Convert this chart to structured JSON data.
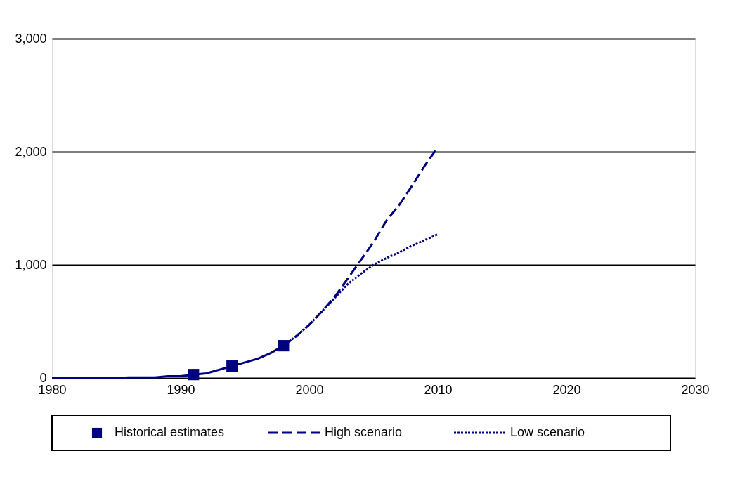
{
  "chart_data": {
    "type": "line",
    "xlim": [
      1980,
      2030
    ],
    "xticks": [
      1980,
      1990,
      2000,
      2010,
      2020,
      2030
    ],
    "ylim": [
      0,
      3000
    ],
    "yticks": [
      {
        "value": 0,
        "label": "0"
      },
      {
        "value": 1000,
        "label": "1,000"
      },
      {
        "value": 2000,
        "label": "2,000"
      },
      {
        "value": 3000,
        "label": "3,000"
      }
    ],
    "grid": "y",
    "legend": "bottom",
    "series": [
      {
        "color": "#000080",
        "line_style": "solid",
        "x": [
          1980,
          1985,
          1986,
          1988,
          1989,
          1990,
          1991,
          1992,
          1994,
          1996,
          1997,
          1998
        ],
        "values": [
          0,
          0,
          5,
          5,
          15,
          15,
          30,
          40,
          105,
          170,
          220,
          285
        ]
      },
      {
        "name": "Historical estimates",
        "type": "scatter",
        "marker": "square",
        "color": "#000080",
        "x": [
          1991,
          1994,
          1998
        ],
        "values": [
          30,
          105,
          285
        ]
      },
      {
        "name": "High scenario",
        "line_style": "dashed",
        "color": "#000080",
        "x": [
          1998,
          1999,
          2000,
          2001,
          2002,
          2003,
          2004,
          2005,
          2006,
          2007,
          2008,
          2009,
          2010
        ],
        "values": [
          285,
          370,
          470,
          590,
          720,
          880,
          1040,
          1200,
          1390,
          1530,
          1700,
          1880,
          2040
        ]
      },
      {
        "name": "Low scenario",
        "line_style": "dotted",
        "color": "#000080",
        "x": [
          1998,
          1999,
          2000,
          2001,
          2002,
          2003,
          2004,
          2005,
          2006,
          2007,
          2008,
          2009,
          2010
        ],
        "values": [
          285,
          370,
          470,
          590,
          710,
          830,
          920,
          1000,
          1060,
          1110,
          1170,
          1220,
          1270
        ]
      }
    ]
  }
}
